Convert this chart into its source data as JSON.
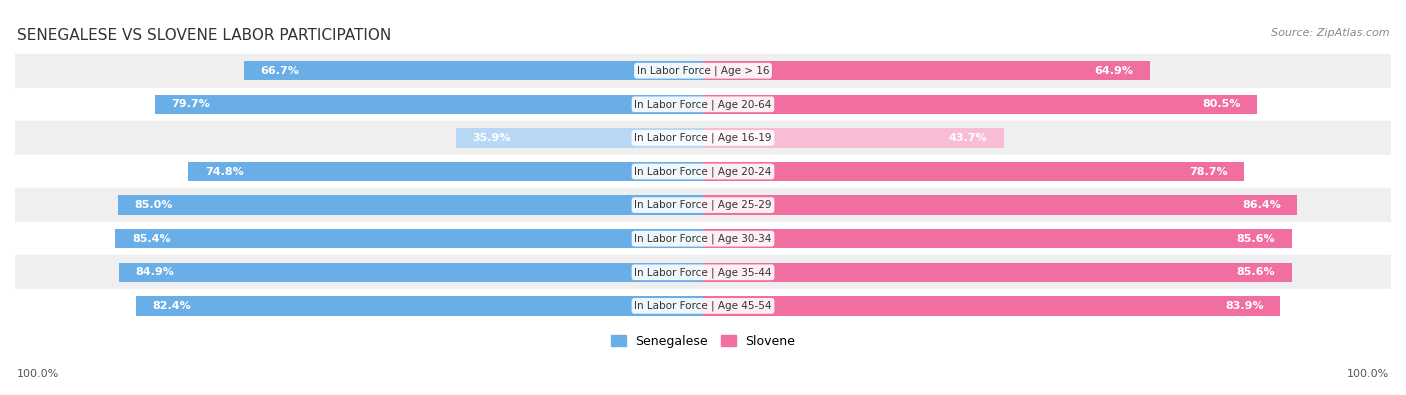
{
  "title": "SENEGALESE VS SLOVENE LABOR PARTICIPATION",
  "source": "Source: ZipAtlas.com",
  "categories": [
    "In Labor Force | Age > 16",
    "In Labor Force | Age 20-64",
    "In Labor Force | Age 16-19",
    "In Labor Force | Age 20-24",
    "In Labor Force | Age 25-29",
    "In Labor Force | Age 30-34",
    "In Labor Force | Age 35-44",
    "In Labor Force | Age 45-54"
  ],
  "senegalese": [
    66.7,
    79.7,
    35.9,
    74.8,
    85.0,
    85.4,
    84.9,
    82.4
  ],
  "slovene": [
    64.9,
    80.5,
    43.7,
    78.7,
    86.4,
    85.6,
    85.6,
    83.9
  ],
  "sen_color_strong": "#6aaee8",
  "sen_color_light": "#b8d8f5",
  "slo_color_strong": "#f06fa0",
  "slo_color_light": "#f8bdd5",
  "bg_row_even": "#efefef",
  "bg_row_odd": "#ffffff",
  "bar_height": 0.58,
  "max_val": 100.0,
  "legend_sen": "Senegalese",
  "legend_slo": "Slovene",
  "bottom_left": "100.0%",
  "bottom_right": "100.0%"
}
